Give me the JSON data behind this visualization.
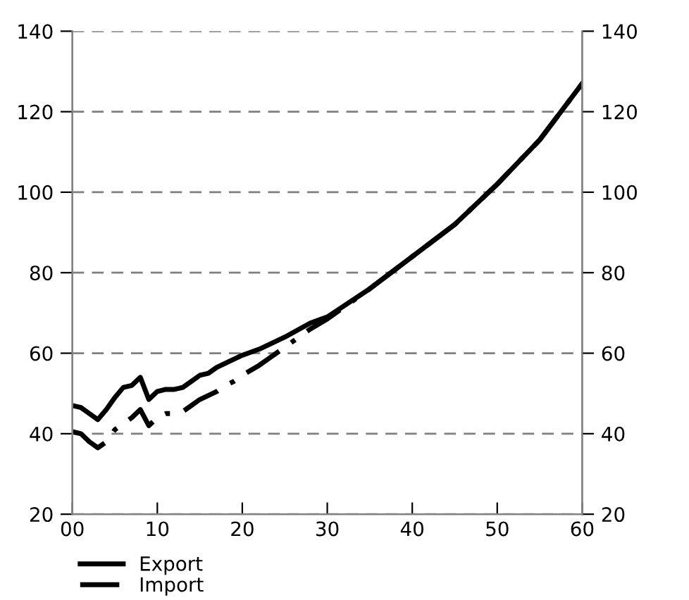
{
  "chart_data": {
    "type": "line",
    "x": [
      0,
      1,
      2,
      3,
      4,
      5,
      6,
      7,
      8,
      9,
      10,
      11,
      12,
      13,
      14,
      15,
      16,
      17,
      18,
      19,
      20,
      22,
      25,
      28,
      30,
      35,
      40,
      45,
      50,
      55,
      60
    ],
    "series": [
      {
        "name": "Export",
        "color": "#000000",
        "line_style": "solid",
        "values": [
          47,
          46.5,
          45,
          43.5,
          46,
          49,
          51.5,
          52,
          54,
          48.5,
          50.5,
          51,
          51,
          51.5,
          53,
          54.5,
          55,
          56.5,
          57.5,
          58.5,
          59.5,
          61,
          64,
          67.5,
          69,
          76,
          84,
          92,
          102,
          113,
          127
        ]
      },
      {
        "name": "Import",
        "color": "#000000",
        "line_style": "dashdot",
        "values": [
          40.5,
          40,
          38,
          36.5,
          38,
          41,
          42.5,
          44,
          46,
          42,
          44,
          45,
          45,
          45.5,
          47,
          48.5,
          49.5,
          50.5,
          52,
          53,
          54.5,
          57,
          61.5,
          66,
          68.5,
          76,
          84,
          92,
          102,
          113,
          127
        ]
      }
    ],
    "xlim": [
      0,
      60
    ],
    "xticks": [
      {
        "value": 0,
        "label": "00"
      },
      10,
      20,
      30,
      40,
      50,
      60
    ],
    "ylim": [
      20,
      140
    ],
    "yticks": [
      20,
      40,
      60,
      80,
      100,
      120,
      140
    ],
    "y2lim": [
      20,
      140
    ],
    "y2ticks": [
      20,
      40,
      60,
      80,
      100,
      120,
      140
    ],
    "grid": "y",
    "legend": "bottom left",
    "marker": "none"
  }
}
